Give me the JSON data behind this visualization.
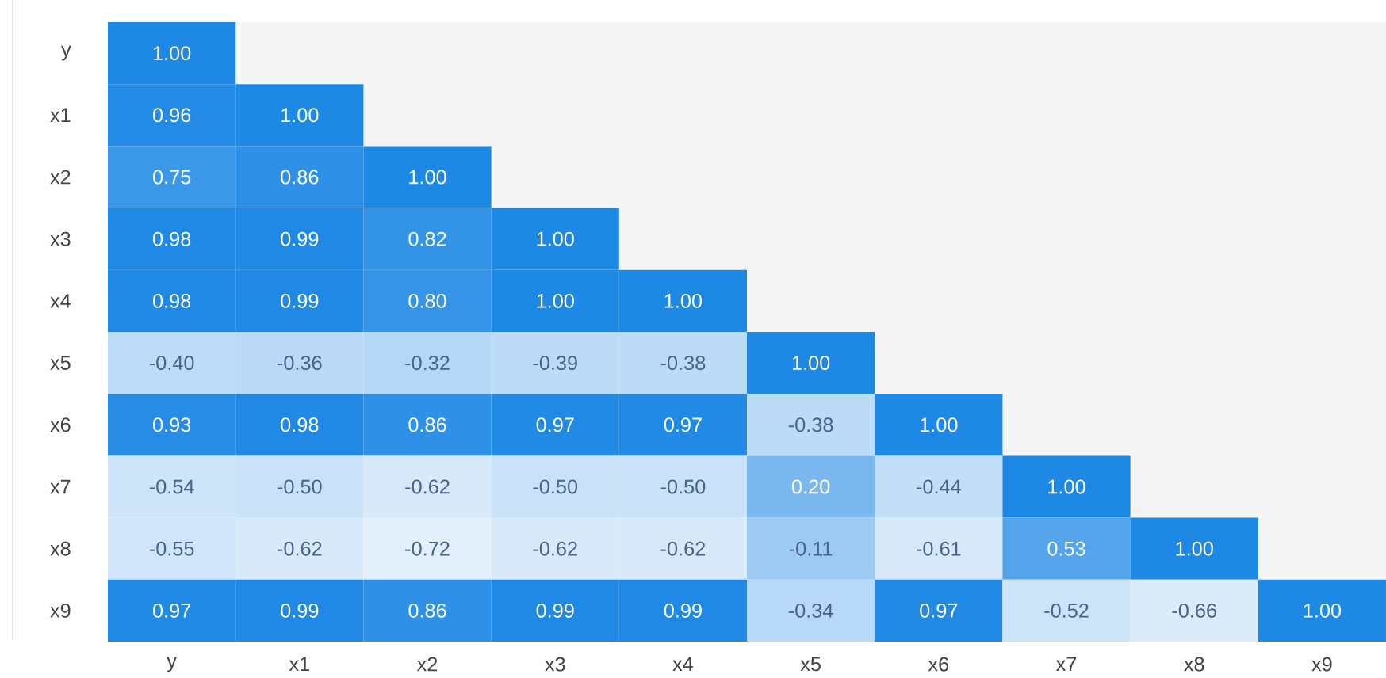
{
  "chart_data": {
    "type": "heatmap",
    "categories": [
      "y",
      "x1",
      "x2",
      "x3",
      "x4",
      "x5",
      "x6",
      "x7",
      "x8",
      "x9"
    ],
    "y_categories": [
      "y",
      "x1",
      "x2",
      "x3",
      "x4",
      "x5",
      "x6",
      "x7",
      "x8",
      "x9"
    ],
    "cells": [
      [
        1.0,
        null,
        null,
        null,
        null,
        null,
        null,
        null,
        null,
        null
      ],
      [
        0.96,
        1.0,
        null,
        null,
        null,
        null,
        null,
        null,
        null,
        null
      ],
      [
        0.75,
        0.86,
        1.0,
        null,
        null,
        null,
        null,
        null,
        null,
        null
      ],
      [
        0.98,
        0.99,
        0.82,
        1.0,
        null,
        null,
        null,
        null,
        null,
        null
      ],
      [
        0.98,
        0.99,
        0.8,
        1.0,
        1.0,
        null,
        null,
        null,
        null,
        null
      ],
      [
        -0.4,
        -0.36,
        -0.32,
        -0.39,
        -0.38,
        1.0,
        null,
        null,
        null,
        null
      ],
      [
        0.93,
        0.98,
        0.86,
        0.97,
        0.97,
        -0.38,
        1.0,
        null,
        null,
        null
      ],
      [
        -0.54,
        -0.5,
        -0.62,
        -0.5,
        -0.5,
        0.2,
        -0.44,
        1.0,
        null,
        null
      ],
      [
        -0.55,
        -0.62,
        -0.72,
        -0.62,
        -0.62,
        -0.11,
        -0.61,
        0.53,
        1.0,
        null
      ],
      [
        0.97,
        0.99,
        0.86,
        0.99,
        0.99,
        -0.34,
        0.97,
        -0.52,
        -0.66,
        1.0
      ]
    ],
    "cell_labels": [
      [
        "1.00",
        null,
        null,
        null,
        null,
        null,
        null,
        null,
        null,
        null
      ],
      [
        "0.96",
        "1.00",
        null,
        null,
        null,
        null,
        null,
        null,
        null,
        null
      ],
      [
        "0.75",
        "0.86",
        "1.00",
        null,
        null,
        null,
        null,
        null,
        null,
        null
      ],
      [
        "0.98",
        "0.99",
        "0.82",
        "1.00",
        null,
        null,
        null,
        null,
        null,
        null
      ],
      [
        "0.98",
        "0.99",
        "0.80",
        "1.00",
        "1.00",
        null,
        null,
        null,
        null,
        null
      ],
      [
        "-0.40",
        "-0.36",
        "-0.32",
        "-0.39",
        "-0.38",
        "1.00",
        null,
        null,
        null,
        null
      ],
      [
        "0.93",
        "0.98",
        "0.86",
        "0.97",
        "0.97",
        "-0.38",
        "1.00",
        null,
        null,
        null
      ],
      [
        "-0.54",
        "-0.50",
        "-0.62",
        "-0.50",
        "-0.50",
        "0.20",
        "-0.44",
        "1.00",
        null,
        null
      ],
      [
        "-0.55",
        "-0.62",
        "-0.72",
        "-0.62",
        "-0.62",
        "-0.11",
        "-0.61",
        "0.53",
        "1.00",
        null
      ],
      [
        "0.97",
        "0.99",
        "0.86",
        "0.99",
        "0.99",
        "-0.34",
        "0.97",
        "-0.52",
        "-0.66",
        "1.00"
      ]
    ]
  }
}
